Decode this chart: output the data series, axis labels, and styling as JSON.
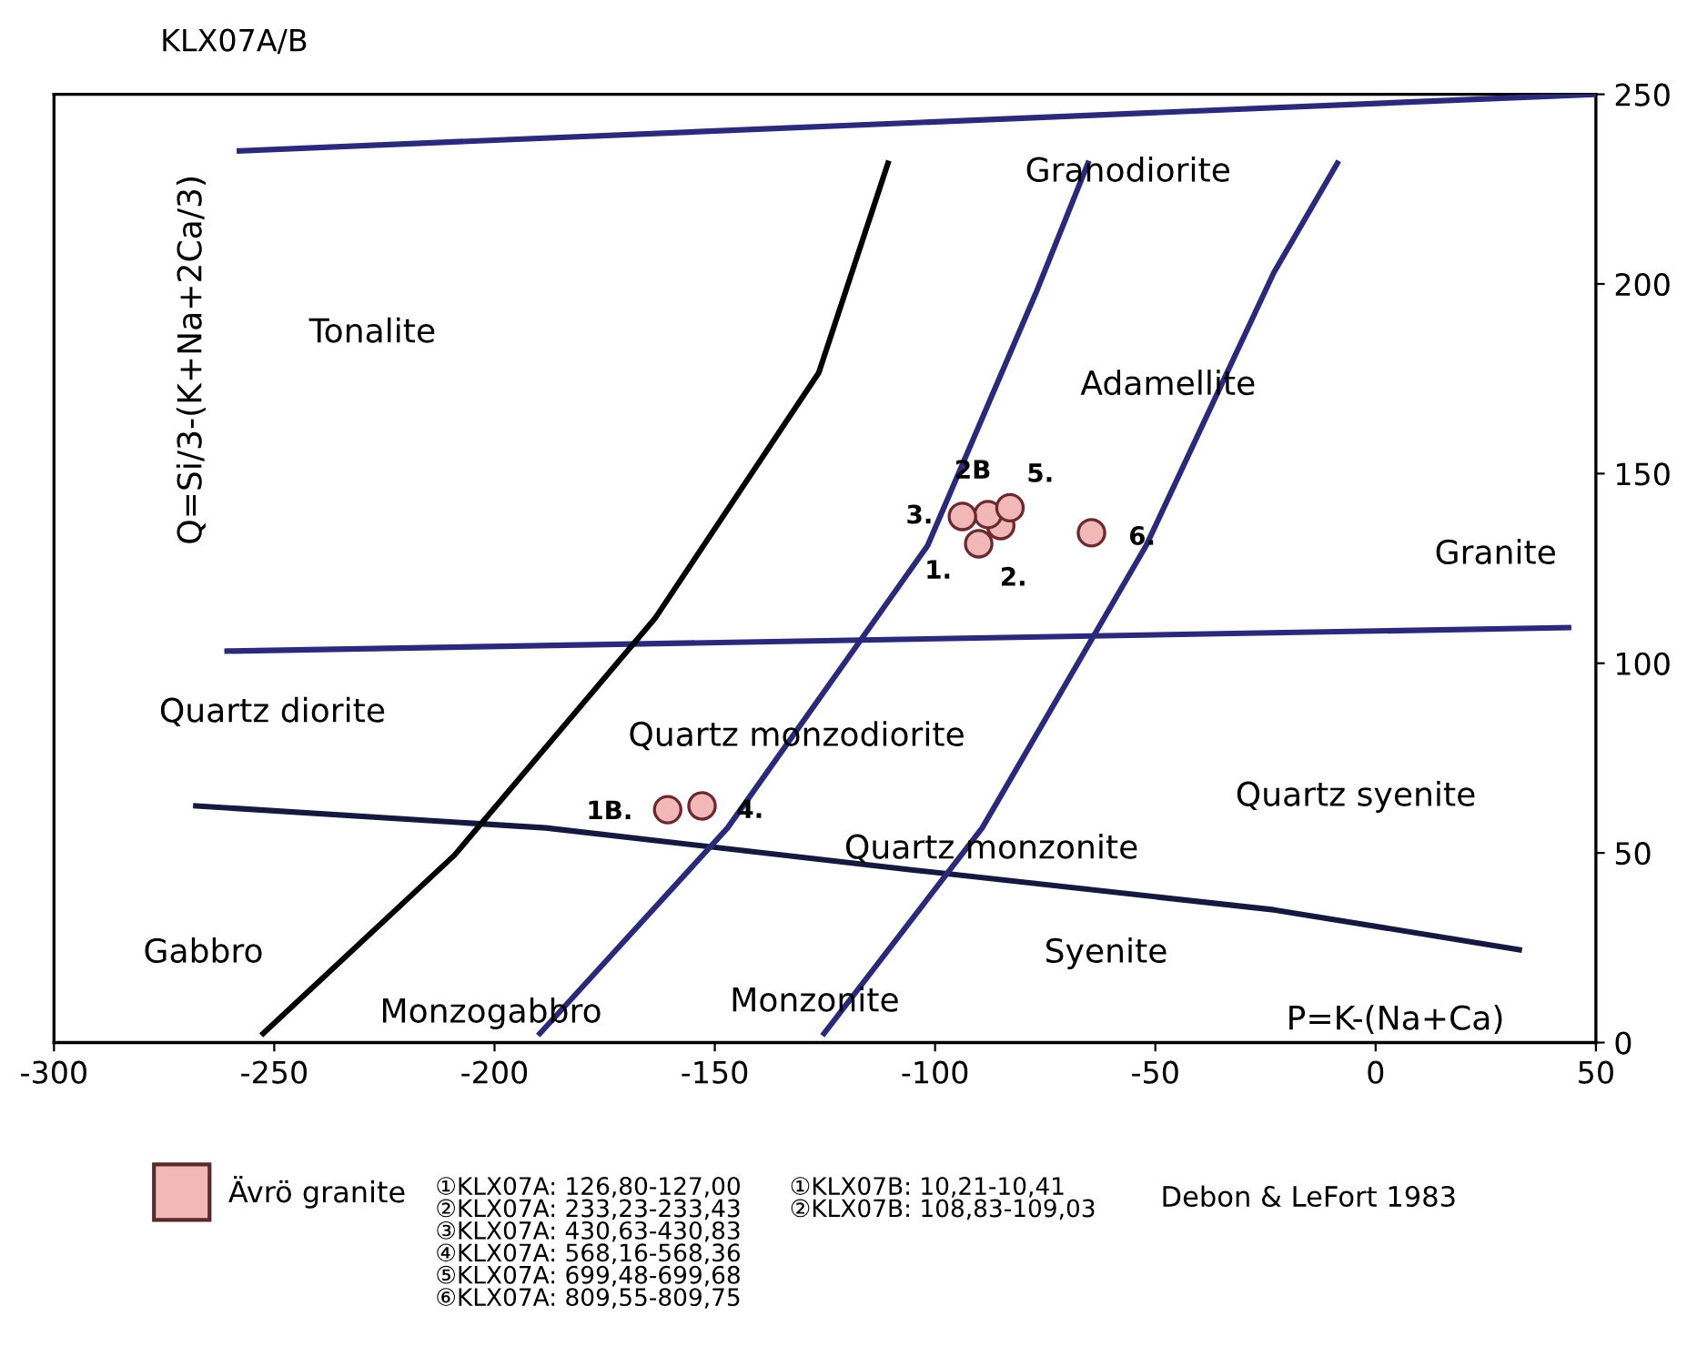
{
  "chart_data": {
    "type": "scatter",
    "title": "KLX07A/B",
    "xlabel": "P=K-(Na+Ca)",
    "ylabel": "Q=Si/3-(K+Na+2Ca/3)",
    "xlim": [
      -300,
      50
    ],
    "ylim": [
      0,
      250
    ],
    "xticks": [
      -300,
      -250,
      -200,
      -150,
      -100,
      -50,
      0,
      50
    ],
    "yticks": [
      0,
      50,
      100,
      150,
      200,
      250
    ],
    "grid": false,
    "legend": "bottom",
    "series": [
      {
        "name": "Ävrö granite",
        "marker": "circle",
        "color": "#f2b8b8",
        "x": [
          -90.1,
          -85.1,
          -88,
          -93.8,
          -83,
          -64.5,
          -160.7,
          -152.9
        ],
        "values": [
          131.5,
          136.3,
          139.2,
          138.7,
          141,
          134.4,
          61.4,
          62.4
        ]
      },
      {
        "type": "line",
        "marker": "none",
        "color": "#2b2a7a",
        "x": [
          -257.9,
          50
        ],
        "values": [
          235.1,
          250
        ]
      },
      {
        "type": "line",
        "marker": "none",
        "color": "#2b2a7a",
        "x": [
          -260.7,
          43.8
        ],
        "values": [
          103.2,
          109.4
        ]
      },
      {
        "type": "line",
        "marker": "none",
        "color": "#15183f",
        "x": [
          -267.8,
          -188.4,
          -105.8,
          -23.1,
          32.6
        ],
        "values": [
          62.4,
          56.6,
          45.6,
          35,
          24.5
        ]
      },
      {
        "type": "line",
        "marker": "none",
        "color": "#000000",
        "x": [
          -252.5,
          -209.1,
          -163.6,
          -126.4,
          -110.7
        ],
        "values": [
          2.4,
          49.4,
          111.8,
          176.6,
          231.8
        ]
      },
      {
        "type": "line",
        "marker": "none",
        "color": "#2b2a7a",
        "x": [
          -189.7,
          -147.1,
          -101.7,
          -76.9,
          -65.3
        ],
        "values": [
          2.4,
          56.6,
          131,
          198.2,
          231.8
        ]
      },
      {
        "type": "line",
        "marker": "none",
        "color": "#2b2a7a",
        "x": [
          -125.2,
          -89.3,
          -52.1,
          -23.1,
          -8.7
        ],
        "values": [
          2.4,
          56.6,
          131,
          203,
          231.8
        ]
      }
    ],
    "annotations": [
      "Tonalite",
      "Granodiorite",
      "Adamellite",
      "Granite",
      "Quartz diorite",
      "Quartz monzodiorite",
      "Quartz syenite",
      "Quartz monzonite",
      "Gabbro",
      "Syenite",
      "Monzogabbro",
      "Monzonite",
      {
        "text": "1.",
        "x": -90.1,
        "y": 131.5
      },
      {
        "text": "2.",
        "x": -85.1,
        "y": 136.3
      },
      {
        "text": "3.",
        "x": -93.8,
        "y": 138.7
      },
      {
        "text": "2B",
        "x": -88,
        "y": 139.2
      },
      {
        "text": "5.",
        "x": -83,
        "y": 141
      },
      {
        "text": "6.",
        "x": -64.5,
        "y": 134.4
      },
      {
        "text": "1B.",
        "x": -160.7,
        "y": 61.4
      },
      {
        "text": "4.",
        "x": -152.9,
        "y": 62.4
      },
      "①KLX07A: 126,80-127,00",
      "②KLX07A: 233,23-233,43",
      "③KLX07A: 430,63-430,83",
      "④KLX07A: 568,16-568,36",
      "⑤KLX07A: 699,48-699,68",
      "⑥KLX07A: 809,55-809,75",
      "①KLX07B: 10,21-10,41",
      "②KLX07B: 108,83-109,03",
      "Debon & LeFort 1983"
    ]
  }
}
